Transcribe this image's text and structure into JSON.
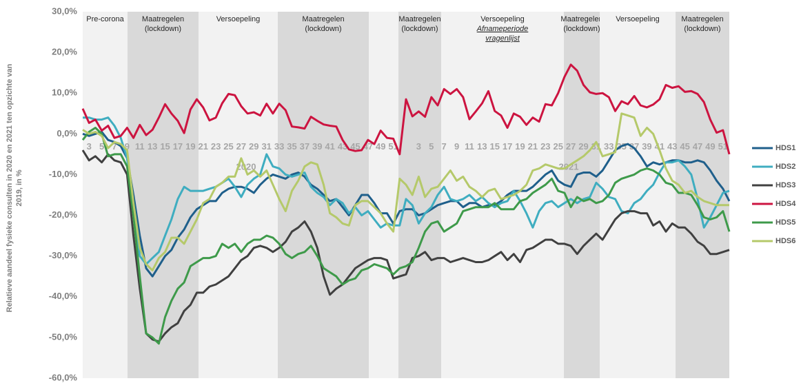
{
  "chart_data": {
    "type": "line",
    "ylabel": [
      "Relatieve aandeel fysieke consulten in 2020 en 2021 ten opzichte van",
      "2019, in %"
    ],
    "categories": [
      null,
      "3",
      null,
      "5",
      null,
      "7",
      null,
      "9",
      null,
      "11",
      null,
      "13",
      null,
      "15",
      null,
      "17",
      null,
      "19",
      null,
      "21",
      null,
      "23",
      null,
      "25",
      null,
      "27",
      null,
      "29",
      null,
      "31",
      null,
      "33",
      null,
      "35",
      null,
      "37",
      null,
      "39",
      null,
      "41",
      null,
      "43",
      null,
      "45",
      null,
      "47",
      null,
      "49",
      null,
      "51",
      null,
      null,
      null,
      "3",
      null,
      "5",
      null,
      "7",
      null,
      "9",
      null,
      "11",
      null,
      "13",
      null,
      "15",
      null,
      "17",
      null,
      "19",
      null,
      "21",
      null,
      "23",
      null,
      "25",
      null,
      "27",
      null,
      "29",
      null,
      "31",
      null,
      "33",
      null,
      "35",
      null,
      "37",
      null,
      "39",
      null,
      "41",
      null,
      "43",
      null,
      "45",
      null,
      "47",
      null,
      "49",
      null,
      "51",
      null
    ],
    "annotations": [
      {
        "text": "2020"
      },
      {
        "text": "2021"
      }
    ],
    "periods": [
      {
        "lines": [
          "Pre-corona"
        ]
      },
      {
        "lines": [
          "Maatregelen",
          "(lockdown)"
        ]
      },
      {
        "lines": [
          "Versoepeling"
        ]
      },
      {
        "lines": [
          "Maatregelen",
          "(lockdown)"
        ]
      },
      {
        "lines": [
          "Maatregelen",
          "(lockdown)"
        ]
      },
      {
        "lines": [
          "Versoepeling",
          "Afnameperiode",
          "vragenlijst"
        ]
      },
      {
        "lines": [
          "Maatregelen",
          "(lockdown)"
        ]
      },
      {
        "lines": [
          "Versoepeling"
        ]
      },
      {
        "lines": [
          "Maatregelen",
          "(lockdown)"
        ]
      }
    ],
    "ylim": [
      -60,
      30
    ],
    "yticks": [
      {
        "value": -60,
        "label": "-60,0%"
      },
      {
        "value": -50,
        "label": "-50,0%"
      },
      {
        "value": -40,
        "label": "-40,0%"
      },
      {
        "value": -30,
        "label": "-30,0%"
      },
      {
        "value": -20,
        "label": "-20,0%"
      },
      {
        "value": -10,
        "label": "-10,0%"
      },
      {
        "value": 0,
        "label": "0,0%"
      },
      {
        "value": 10,
        "label": "10,0%"
      },
      {
        "value": 20,
        "label": "20,0%"
      },
      {
        "value": 30,
        "label": "30,0%"
      }
    ],
    "grid": false,
    "legend": "right",
    "series": [
      {
        "name": "HDS1",
        "color": "#1f5f8b",
        "values": [
          0,
          -0.5,
          0,
          0.5,
          -1.5,
          -2,
          -3,
          -6,
          -15,
          -25,
          -33,
          -35,
          -32.5,
          -30,
          -28.5,
          -25.5,
          -23.5,
          -20.5,
          -18.5,
          -17.5,
          -16.5,
          -16.5,
          -14.5,
          -13.5,
          -13,
          -13,
          -13.5,
          -14.5,
          -12.5,
          -11,
          -10,
          -10.5,
          -11,
          -10,
          -9.5,
          -10.5,
          -12.5,
          -13.5,
          -15,
          -16.5,
          -16,
          -18,
          -20,
          -17.5,
          -15,
          -15,
          -17,
          -19.5,
          -19.5,
          -22,
          -19,
          -18.5,
          -18.5,
          -20,
          -19.5,
          -18.5,
          -17.5,
          -17,
          -16.5,
          -16.5,
          -18,
          -17,
          -17,
          -18,
          -17.5,
          -17.5,
          -16.5,
          -15,
          -14,
          -14,
          -14,
          -13,
          -11.5,
          -10,
          -9,
          -11.5,
          -12.5,
          -13,
          -10,
          -9.5,
          -9.5,
          -10.5,
          -9,
          -6.5,
          -4,
          -3,
          -2.5,
          -3.5,
          -5.5,
          -8,
          -7,
          -7.5,
          -7,
          -6.5,
          -6.5,
          -7,
          -7,
          -6.5,
          -7,
          -9,
          -11.5,
          -13.5,
          -16.5
        ]
      },
      {
        "name": "HDS2",
        "color": "#3fadc0",
        "values": [
          4,
          4,
          3.5,
          3.5,
          4,
          2,
          -1,
          -6,
          -18,
          -30,
          -32,
          -30.5,
          -29,
          -25,
          -21,
          -16,
          -13,
          -14,
          -14,
          -14,
          -13.5,
          -13,
          -12,
          -11,
          -13,
          -15.5,
          -12.5,
          -11,
          -10,
          -5,
          -8,
          -8.5,
          -10,
          -10.5,
          -10,
          -9.5,
          -13,
          -14.5,
          -15.5,
          -17.5,
          -16,
          -17,
          -19.5,
          -18,
          -20,
          -19,
          -21,
          -23,
          -22,
          -22.5,
          -22.5,
          -16,
          -17.5,
          -22,
          -19.5,
          -18,
          -15,
          -13,
          -16,
          -16.5,
          -16,
          -15,
          -16.5,
          -15.5,
          -17,
          -18,
          -17,
          -16.5,
          -14,
          -16.5,
          -19.5,
          -23,
          -19,
          -17,
          -16.5,
          -18,
          -17,
          -16,
          -17,
          -16,
          -15.5,
          -12,
          -13.5,
          -15.5,
          -16,
          -19,
          -19.5,
          -17,
          -16,
          -14,
          -12.5,
          -9.5,
          -7,
          -7,
          -6.5,
          -8,
          -10,
          -16,
          -23,
          -20.5,
          -17.5,
          -14.5,
          -14
        ]
      },
      {
        "name": "HDS3",
        "color": "#404040",
        "values": [
          -4,
          -6.5,
          -5.5,
          -7,
          -5,
          -6.5,
          -7,
          -10,
          -25,
          -38,
          -49,
          -50.5,
          -51,
          -49,
          -47.5,
          -46.5,
          -43.5,
          -42,
          -39,
          -39,
          -37.5,
          -37,
          -36,
          -35,
          -33,
          -31,
          -30,
          -28,
          -27.5,
          -28,
          -29,
          -28,
          -26.5,
          -24,
          -23,
          -21.5,
          -24,
          -28,
          -35,
          -39.5,
          -38,
          -37,
          -35,
          -33,
          -32,
          -31,
          -30.5,
          -30.5,
          -31,
          -35.5,
          -35,
          -34.5,
          -30.5,
          -30,
          -29,
          -31,
          -30.5,
          -30.5,
          -31.5,
          -31,
          -30.5,
          -31,
          -31.5,
          -31.5,
          -31,
          -30,
          -29,
          -31,
          -29.5,
          -31.5,
          -28.5,
          -28,
          -27,
          -26,
          -26,
          -27,
          -27,
          -27.5,
          -29.5,
          -27.5,
          -26,
          -24.5,
          -26,
          -23.5,
          -21,
          -19.5,
          -19,
          -19,
          -19.5,
          -19.5,
          -22.5,
          -21.5,
          -24,
          -22,
          -23,
          -23,
          -24.5,
          -26.5,
          -27.5,
          -29.5,
          -29.5,
          -29,
          -28.5
        ]
      },
      {
        "name": "HDS4",
        "color": "#cc1440",
        "values": [
          6.2,
          2.7,
          3.5,
          0.8,
          2,
          -1,
          -0.5,
          1.5,
          -1,
          2.2,
          -0.3,
          1,
          4,
          7.3,
          5,
          3.2,
          0.2,
          6,
          8.5,
          6.5,
          3.3,
          4,
          7.5,
          9.8,
          9.5,
          6.8,
          5,
          5.3,
          4.5,
          7.4,
          5,
          7.4,
          5.8,
          1.8,
          1.6,
          1.3,
          4.2,
          3.2,
          2.3,
          2,
          1.8,
          -1.5,
          -3.8,
          -4.2,
          -4,
          -1.5,
          -2.5,
          0.8,
          -1,
          -1.2,
          -5,
          8.5,
          4.3,
          5.5,
          4.2,
          9,
          7,
          11,
          9.8,
          11,
          9,
          3.6,
          5.5,
          7.5,
          10.5,
          5.6,
          4.5,
          1.5,
          5,
          4.2,
          2.2,
          4,
          3,
          7.3,
          7,
          10,
          14,
          17,
          15.5,
          12,
          10.2,
          9.8,
          10,
          9,
          5.6,
          8,
          7.3,
          9.3,
          7,
          6.5,
          7.2,
          8.5,
          12,
          11.3,
          11.7,
          10.3,
          10.5,
          9.8,
          7.8,
          3.5,
          0.3,
          0.9,
          -5
        ]
      },
      {
        "name": "HDS5",
        "color": "#3e9a4a",
        "values": [
          -1.5,
          0.5,
          1.5,
          0,
          -5.5,
          -5,
          -5,
          -8,
          -20,
          -35,
          -49,
          -50,
          -51.5,
          -45,
          -41,
          -38,
          -36.5,
          -32.5,
          -31.5,
          -30.5,
          -30.5,
          -30,
          -27,
          -28,
          -27,
          -29,
          -27,
          -26,
          -26,
          -25,
          -25.5,
          -27,
          -29.5,
          -30.5,
          -29.5,
          -29,
          -27.5,
          -30,
          -33,
          -34,
          -35,
          -37,
          -36,
          -35.5,
          -33.5,
          -33,
          -32,
          -32.5,
          -33,
          -34.5,
          -33,
          -32.5,
          -31.5,
          -28,
          -24,
          -22,
          -21.5,
          -24,
          -23,
          -22,
          -19,
          -18.5,
          -18,
          -18,
          -18,
          -17,
          -18.5,
          -18.5,
          -18.5,
          -16.5,
          -16,
          -14.5,
          -13.5,
          -12.5,
          -11,
          -14,
          -14.5,
          -18,
          -15.5,
          -16.5,
          -16,
          -17,
          -16.5,
          -15,
          -12,
          -11,
          -10.5,
          -10,
          -9,
          -8.5,
          -9,
          -10,
          -12,
          -12.5,
          -14.5,
          -14.5,
          -15,
          -17.5,
          -20.5,
          -21,
          -20.5,
          -19,
          -24
        ]
      },
      {
        "name": "HDS6",
        "color": "#b5c96a",
        "values": [
          1,
          0,
          0.5,
          -0.5,
          -3.5,
          -2,
          -2.5,
          -4,
          -17,
          -28,
          -32,
          -33.5,
          -30.5,
          -29,
          -25.5,
          -25.5,
          -27,
          -24,
          -21,
          -17,
          -16,
          -13,
          -12,
          -10.5,
          -10.5,
          -6,
          -10,
          -9,
          -10.5,
          -9,
          -12.5,
          -16,
          -19,
          -14,
          -11.5,
          -8,
          -7,
          -7.5,
          -12.5,
          -19.5,
          -20.5,
          -22,
          -22.5,
          -17.5,
          -16.5,
          -16.5,
          -18,
          -19.5,
          -22,
          -24,
          -11,
          -12.5,
          -15,
          -10.5,
          -15.5,
          -13.5,
          -13,
          -11,
          -9,
          -11.5,
          -10.5,
          -13,
          -14,
          -15.5,
          -14,
          -13.5,
          -16,
          -15.5,
          -15,
          -14,
          -12.5,
          -9,
          -8.5,
          -7.5,
          -8,
          -8.5,
          -8.5,
          -7.5,
          -6.5,
          -5.5,
          -4,
          -2,
          -5.5,
          -5,
          -4.5,
          5,
          4.5,
          4,
          -0.5,
          1.5,
          0,
          -4,
          -8.5,
          -11.5,
          -12.5,
          -14.5,
          -14,
          -15.5,
          -16.5,
          -17,
          -17.5,
          -17.5,
          -17.5
        ]
      }
    ]
  }
}
